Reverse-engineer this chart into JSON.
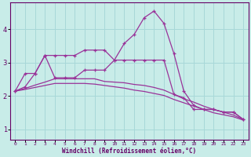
{
  "xlabel": "Windchill (Refroidissement éolien,°C)",
  "bg_color": "#c8ece8",
  "line_color": "#993399",
  "grid_color": "#a8d8d8",
  "axis_color": "#660066",
  "text_color": "#660066",
  "xlim": [
    -0.5,
    23.5
  ],
  "ylim": [
    0.7,
    4.8
  ],
  "xticks": [
    0,
    1,
    2,
    3,
    4,
    5,
    6,
    7,
    8,
    9,
    10,
    11,
    12,
    13,
    14,
    15,
    16,
    17,
    18,
    19,
    20,
    21,
    22,
    23
  ],
  "yticks": [
    1,
    2,
    3,
    4
  ],
  "line1_x": [
    0,
    1,
    2,
    3,
    4,
    5,
    6,
    7,
    8,
    9,
    10,
    11,
    12,
    13,
    14,
    15,
    16,
    17,
    18,
    19,
    20,
    21,
    22,
    23
  ],
  "line1_y": [
    2.15,
    2.28,
    2.68,
    3.22,
    3.22,
    3.22,
    3.22,
    3.38,
    3.38,
    3.38,
    3.08,
    3.08,
    3.08,
    3.08,
    3.08,
    3.08,
    2.05,
    1.95,
    1.6,
    1.6,
    1.6,
    1.52,
    1.52,
    1.3
  ],
  "line2_x": [
    0,
    1,
    2,
    3,
    4,
    5,
    6,
    7,
    8,
    9,
    10,
    11,
    12,
    13,
    14,
    15,
    16,
    17,
    18,
    19,
    20,
    21,
    22,
    23
  ],
  "line2_y": [
    2.15,
    2.68,
    2.68,
    3.22,
    2.55,
    2.55,
    2.55,
    2.78,
    2.78,
    2.78,
    3.08,
    3.58,
    3.85,
    4.35,
    4.55,
    4.18,
    3.28,
    2.15,
    1.72,
    1.6,
    1.6,
    1.52,
    1.52,
    1.3
  ],
  "line3_x": [
    0,
    1,
    2,
    3,
    4,
    5,
    6,
    7,
    8,
    9,
    10,
    11,
    12,
    13,
    14,
    15,
    16,
    17,
    18,
    19,
    20,
    21,
    22,
    23
  ],
  "line3_y": [
    2.15,
    2.23,
    2.33,
    2.42,
    2.52,
    2.52,
    2.52,
    2.52,
    2.52,
    2.44,
    2.42,
    2.4,
    2.35,
    2.32,
    2.26,
    2.18,
    2.05,
    1.92,
    1.82,
    1.7,
    1.6,
    1.52,
    1.43,
    1.3
  ],
  "line4_x": [
    0,
    1,
    2,
    3,
    4,
    5,
    6,
    7,
    8,
    9,
    10,
    11,
    12,
    13,
    14,
    15,
    16,
    17,
    18,
    19,
    20,
    21,
    22,
    23
  ],
  "line4_y": [
    2.15,
    2.2,
    2.26,
    2.32,
    2.38,
    2.38,
    2.38,
    2.38,
    2.36,
    2.32,
    2.28,
    2.24,
    2.18,
    2.14,
    2.08,
    2.02,
    1.9,
    1.8,
    1.7,
    1.6,
    1.5,
    1.44,
    1.38,
    1.28
  ]
}
